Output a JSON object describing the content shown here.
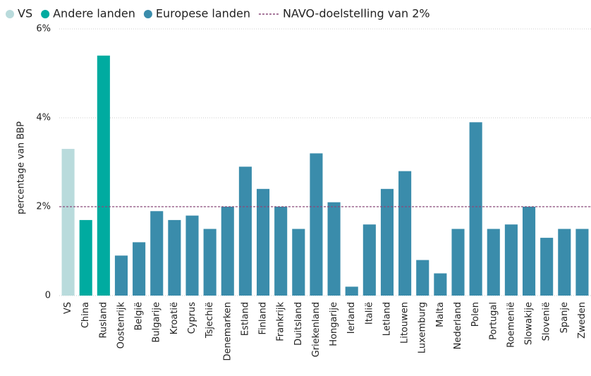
{
  "chart_data": {
    "type": "bar",
    "y_label": "percentage van BBP",
    "categories": [
      "VS",
      "China",
      "Rusland",
      "Oostenrijk",
      "België",
      "Bulgarije",
      "Kroatië",
      "Cyprus",
      "Tsjechië",
      "Denemarken",
      "Estland",
      "Finland",
      "Frankrijk",
      "Duitsland",
      "Griekenland",
      "Hongarije",
      "Ierland",
      "Italië",
      "Letland",
      "Litouwen",
      "Luxemburg",
      "Malta",
      "Nederland",
      "Polen",
      "Portugal",
      "Roemenië",
      "Slowakije",
      "Slovenië",
      "Spanje",
      "Zweden"
    ],
    "series": [
      {
        "name": "VS",
        "color": "#b9dbdc",
        "values": [
          3.3,
          null,
          null,
          null,
          null,
          null,
          null,
          null,
          null,
          null,
          null,
          null,
          null,
          null,
          null,
          null,
          null,
          null,
          null,
          null,
          null,
          null,
          null,
          null,
          null,
          null,
          null,
          null,
          null,
          null
        ]
      },
      {
        "name": "Andere landen",
        "color": "#00aba0",
        "values": [
          null,
          1.7,
          5.4,
          null,
          null,
          null,
          null,
          null,
          null,
          null,
          null,
          null,
          null,
          null,
          null,
          null,
          null,
          null,
          null,
          null,
          null,
          null,
          null,
          null,
          null,
          null,
          null,
          null,
          null,
          null
        ]
      },
      {
        "name": "Europese landen",
        "color": "#3a8cab",
        "values": [
          null,
          null,
          null,
          0.9,
          1.2,
          1.9,
          1.7,
          1.8,
          1.5,
          2.0,
          2.9,
          2.4,
          2.0,
          1.5,
          3.2,
          2.1,
          0.2,
          1.6,
          2.4,
          2.8,
          0.8,
          0.5,
          1.5,
          3.9,
          1.5,
          1.6,
          2.0,
          1.3,
          1.5,
          1.5
        ]
      }
    ],
    "reference_line": {
      "name": "NAVO-doelstelling van 2%",
      "value": 2,
      "color": "#8a4a7a"
    },
    "ylim": [
      0,
      6
    ],
    "yticks": [
      0,
      {
        "value": 2,
        "label": "2%"
      },
      {
        "value": 4,
        "label": "4%"
      },
      {
        "value": 6,
        "label": "6%"
      }
    ],
    "grid": true
  }
}
